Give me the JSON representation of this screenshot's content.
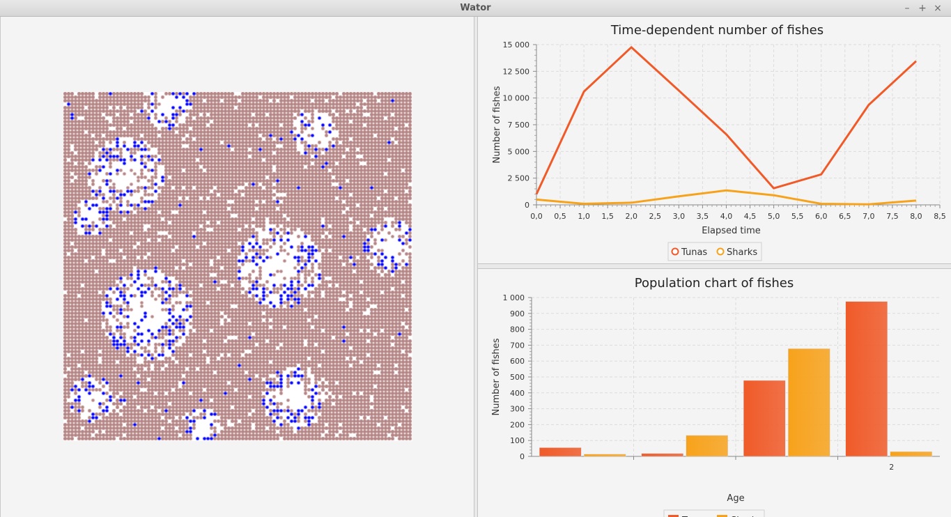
{
  "window": {
    "title": "Wator",
    "minimize": "–",
    "maximize": "+",
    "close": "×"
  },
  "colors": {
    "ocean": "#ffffff",
    "tuna": "#b58585",
    "shark": "#0000ff",
    "tunas_series": "#f05a28",
    "sharks_series": "#f7a21b"
  },
  "chart_data": [
    {
      "type": "line",
      "title": "Time-dependent number of fishes",
      "xlabel": "Elapsed time",
      "ylabel": "Number of fishes",
      "xlim": [
        0,
        8.5
      ],
      "ylim": [
        0,
        15000
      ],
      "xticks": [
        "0,0",
        "0,5",
        "1,0",
        "1,5",
        "2,0",
        "2,5",
        "3,0",
        "3,5",
        "4,0",
        "4,5",
        "5,0",
        "5,5",
        "6,0",
        "6,5",
        "7,0",
        "7,5",
        "8,0",
        "8,5"
      ],
      "yticks": [
        "0",
        "2 500",
        "5 000",
        "7 500",
        "10 000",
        "12 500",
        "15 000"
      ],
      "grid": true,
      "legend": "bottom",
      "series": [
        {
          "name": "Tunas",
          "x": [
            0,
            1,
            2,
            3,
            4,
            5,
            6,
            7,
            8
          ],
          "y": [
            1000,
            10600,
            14750,
            10700,
            6600,
            1550,
            2850,
            9350,
            13450
          ]
        },
        {
          "name": "Sharks",
          "x": [
            0,
            1,
            2,
            3,
            4,
            5,
            6,
            7,
            8
          ],
          "y": [
            500,
            100,
            200,
            800,
            1350,
            900,
            100,
            50,
            400
          ]
        }
      ]
    },
    {
      "type": "bar",
      "title": "Population chart of fishes",
      "xlabel": "Age",
      "ylabel": "Number of fishes",
      "ylim": [
        0,
        1000
      ],
      "yticks": [
        "0",
        "100",
        "200",
        "300",
        "400",
        "500",
        "600",
        "700",
        "800",
        "900",
        "1 000"
      ],
      "categories": [
        "",
        "",
        "",
        "2"
      ],
      "grid": true,
      "legend": "bottom",
      "series": [
        {
          "name": "Tunas",
          "values": [
            55,
            18,
            478,
            975
          ]
        },
        {
          "name": "Sharks",
          "values": [
            14,
            132,
            678,
            30
          ]
        }
      ]
    }
  ]
}
